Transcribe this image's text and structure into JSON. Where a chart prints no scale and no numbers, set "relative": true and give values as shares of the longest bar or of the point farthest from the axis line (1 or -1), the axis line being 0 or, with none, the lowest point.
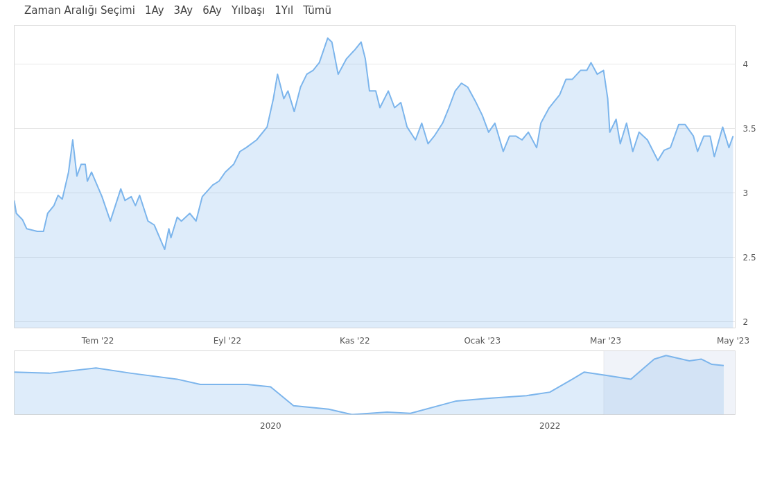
{
  "chart_data": [
    {
      "type": "area",
      "annotations": [
        "Zaman Aralığı Seçimi",
        "1Ay",
        "3Ay",
        "6Ay",
        "Yılbaşı",
        "1Yıl",
        "Tümü"
      ],
      "x": [
        "2022-05-22",
        "2022-05-23",
        "2022-05-26",
        "2022-05-28",
        "2022-06-02",
        "2022-06-05",
        "2022-06-07",
        "2022-06-10",
        "2022-06-12",
        "2022-06-14",
        "2022-06-17",
        "2022-06-19",
        "2022-06-21",
        "2022-06-23",
        "2022-06-25",
        "2022-06-26",
        "2022-06-28",
        "2022-07-03",
        "2022-07-07",
        "2022-07-12",
        "2022-07-14",
        "2022-07-17",
        "2022-07-19",
        "2022-07-21",
        "2022-07-25",
        "2022-07-28",
        "2022-08-02",
        "2022-08-04",
        "2022-08-05",
        "2022-08-08",
        "2022-08-10",
        "2022-08-14",
        "2022-08-17",
        "2022-08-20",
        "2022-08-25",
        "2022-08-28",
        "2022-08-31",
        "2022-09-04",
        "2022-09-07",
        "2022-09-10",
        "2022-09-15",
        "2022-09-20",
        "2022-09-23",
        "2022-09-25",
        "2022-09-28",
        "2022-09-30",
        "2022-10-03",
        "2022-10-06",
        "2022-10-09",
        "2022-10-12",
        "2022-10-15",
        "2022-10-19",
        "2022-10-21",
        "2022-10-24",
        "2022-10-28",
        "2022-11-01",
        "2022-11-04",
        "2022-11-06",
        "2022-11-08",
        "2022-11-11",
        "2022-11-13",
        "2022-11-17",
        "2022-11-20",
        "2022-11-23",
        "2022-11-26",
        "2022-11-30",
        "2022-12-03",
        "2022-12-06",
        "2022-12-09",
        "2022-12-13",
        "2022-12-16",
        "2022-12-19",
        "2022-12-22",
        "2022-12-25",
        "2022-12-29",
        "2023-01-01",
        "2023-01-04",
        "2023-01-07",
        "2023-01-11",
        "2023-01-14",
        "2023-01-17",
        "2023-01-20",
        "2023-01-23",
        "2023-01-27",
        "2023-01-29",
        "2023-02-02",
        "2023-02-07",
        "2023-02-10",
        "2023-02-13",
        "2023-02-17",
        "2023-02-20",
        "2023-02-22",
        "2023-02-25",
        "2023-02-28",
        "2023-03-02",
        "2023-03-03",
        "2023-03-06",
        "2023-03-08",
        "2023-03-11",
        "2023-03-14",
        "2023-03-17",
        "2023-03-21",
        "2023-03-26",
        "2023-03-29",
        "2023-04-01",
        "2023-04-05",
        "2023-04-08",
        "2023-04-12",
        "2023-04-14",
        "2023-04-17",
        "2023-04-20",
        "2023-04-22",
        "2023-04-26",
        "2023-04-29",
        "2023-05-01"
      ],
      "series": [
        {
          "color": "#7cb5ec",
          "values": [
            2.94,
            2.84,
            2.79,
            2.72,
            2.7,
            2.7,
            2.84,
            2.9,
            2.98,
            2.95,
            3.16,
            3.41,
            3.13,
            3.22,
            3.22,
            3.09,
            3.16,
            2.97,
            2.78,
            3.03,
            2.94,
            2.97,
            2.9,
            2.98,
            2.78,
            2.75,
            2.56,
            2.72,
            2.65,
            2.81,
            2.78,
            2.84,
            2.78,
            2.97,
            3.06,
            3.09,
            3.16,
            3.22,
            3.32,
            3.35,
            3.41,
            3.51,
            3.73,
            3.92,
            3.73,
            3.79,
            3.63,
            3.82,
            3.92,
            3.95,
            4.01,
            4.2,
            4.17,
            3.92,
            4.04,
            4.11,
            4.17,
            4.04,
            3.79,
            3.79,
            3.66,
            3.79,
            3.66,
            3.7,
            3.51,
            3.41,
            3.54,
            3.38,
            3.44,
            3.54,
            3.66,
            3.79,
            3.85,
            3.82,
            3.7,
            3.6,
            3.47,
            3.54,
            3.32,
            3.44,
            3.44,
            3.41,
            3.47,
            3.35,
            3.54,
            3.66,
            3.76,
            3.88,
            3.88,
            3.95,
            3.95,
            4.01,
            3.92,
            3.95,
            3.73,
            3.47,
            3.57,
            3.38,
            3.54,
            3.32,
            3.47,
            3.41,
            3.25,
            3.33,
            3.35,
            3.53,
            3.53,
            3.44,
            3.32,
            3.44,
            3.44,
            3.28,
            3.51,
            3.35,
            3.44
          ]
        }
      ],
      "xlim": [
        "2022-05-22",
        "2023-05-02"
      ],
      "ylim": [
        1.95,
        4.3
      ],
      "xticks": [
        {
          "value": "2022-07-01",
          "label": "Tem '22"
        },
        {
          "value": "2022-09-01",
          "label": "Eyl '22"
        },
        {
          "value": "2022-11-01",
          "label": "Kas '22"
        },
        {
          "value": "2023-01-01",
          "label": "Ocak '23"
        },
        {
          "value": "2023-03-01",
          "label": "Mar '23"
        },
        {
          "value": "2023-05-01",
          "label": "May '23"
        }
      ],
      "yticks": [
        2,
        2.5,
        3,
        3.5,
        4
      ],
      "grid": "y"
    },
    {
      "type": "area",
      "relative": true,
      "x": [
        "2018-03",
        "2018-06",
        "2018-10",
        "2019-01",
        "2019-05",
        "2019-07",
        "2019-11",
        "2020-01",
        "2020-03",
        "2020-06",
        "2020-08",
        "2020-11",
        "2021-01",
        "2021-05",
        "2021-08",
        "2021-11",
        "2022-01",
        "2022-03",
        "2022-04",
        "2022-06",
        "2022-08",
        "2022-10",
        "2022-11",
        "2023-01",
        "2023-02",
        "2023-03",
        "2023-04"
      ],
      "series": [
        {
          "color": "#7cb5ec",
          "values": [
            0.72,
            0.7,
            0.79,
            0.7,
            0.6,
            0.51,
            0.51,
            0.47,
            0.15,
            0.09,
            0,
            0.04,
            0.02,
            0.23,
            0.28,
            0.32,
            0.38,
            0.6,
            0.72,
            0.66,
            0.6,
            0.94,
            1,
            0.91,
            0.94,
            0.85,
            0.83
          ]
        }
      ],
      "xlim": [
        "2018-03",
        "2023-05"
      ],
      "xticks": [
        {
          "value": "2020-01",
          "label": "2020"
        },
        {
          "value": "2022-01",
          "label": "2022"
        }
      ],
      "bands": [
        {
          "axis": "x",
          "from": "2022-05-22",
          "to": "2023-05-02",
          "color": "#e6ebf5"
        }
      ],
      "tick_labels": "x"
    }
  ]
}
